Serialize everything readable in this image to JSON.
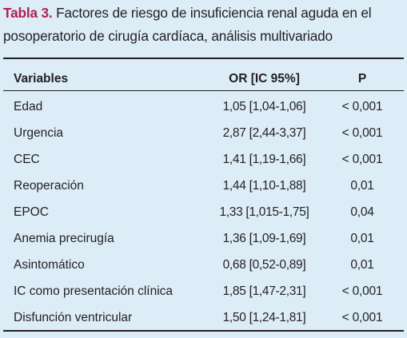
{
  "caption": {
    "label": "Tabla 3.",
    "text": " Factores de riesgo de insuficiencia renal aguda en el posoperatorio de cirugía cardíaca, análisis multivariado"
  },
  "colors": {
    "background": "#dcedf8",
    "caption_label": "#b41e4f",
    "text": "#231f20"
  },
  "table": {
    "headers": {
      "variables": "Variables",
      "or": "OR [IC 95%]",
      "p": "P"
    },
    "rows": [
      {
        "variable": "Edad",
        "or": "1,05 [1,04-1,06]",
        "p": "< 0,001"
      },
      {
        "variable": "Urgencia",
        "or": "2,87 [2,44-3,37]",
        "p": "< 0,001"
      },
      {
        "variable": "CEC",
        "or": "1,41 [1,19-1,66]",
        "p": "< 0,001"
      },
      {
        "variable": "Reoperación",
        "or": "1,44 [1,10-1,88]",
        "p": "0,01"
      },
      {
        "variable": "EPOC",
        "or": "1,33 [1,015-1,75]",
        "p": "0,04"
      },
      {
        "variable": "Anemia precirugía",
        "or": "1,36 [1,09-1,69]",
        "p": "0,01"
      },
      {
        "variable": "Asintomático",
        "or": "0,68 [0,52-0,89]",
        "p": "0,01"
      },
      {
        "variable": "IC como presentación clínica",
        "or": "1,85 [1,47-2,31]",
        "p": "< 0,001"
      },
      {
        "variable": "Disfunción ventricular",
        "or": "1,50 [1,24-1,81]",
        "p": "< 0,001"
      }
    ]
  }
}
